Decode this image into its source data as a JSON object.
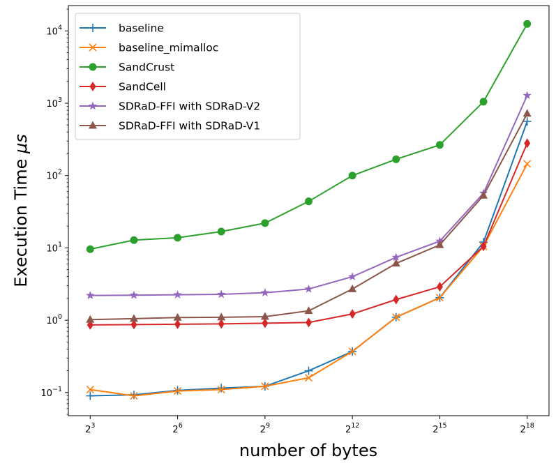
{
  "chart_data": {
    "type": "line",
    "xscale": "log2",
    "yscale": "log10",
    "xlabel": "number of bytes",
    "ylabel": "Execution Time μs",
    "ylabel_plain": "Execution Time ",
    "ylabel_symbol": "μs",
    "x_exponents": [
      3,
      4.5,
      6,
      7.5,
      9,
      10.5,
      12,
      13.5,
      15,
      16.5,
      18
    ],
    "x_ticks": [
      {
        "base": "2",
        "exp": "3",
        "value": 3
      },
      {
        "base": "2",
        "exp": "6",
        "value": 6
      },
      {
        "base": "2",
        "exp": "9",
        "value": 9
      },
      {
        "base": "2",
        "exp": "12",
        "value": 12
      },
      {
        "base": "2",
        "exp": "15",
        "value": 15
      },
      {
        "base": "2",
        "exp": "18",
        "value": 18
      }
    ],
    "y_ticks": [
      {
        "base": "10",
        "exp": "−1",
        "value": -1
      },
      {
        "base": "10",
        "exp": "0",
        "value": 0
      },
      {
        "base": "10",
        "exp": "1",
        "value": 1
      },
      {
        "base": "10",
        "exp": "2",
        "value": 2
      },
      {
        "base": "10",
        "exp": "3",
        "value": 3
      },
      {
        "base": "10",
        "exp": "4",
        "value": 4
      }
    ],
    "xlim": [
      2.25,
      18.75
    ],
    "ylim_log10": [
      -1.32,
      4.35
    ],
    "legend_position": "upper-left",
    "series": [
      {
        "name": "baseline",
        "color": "#1f77b4",
        "marker": "plus",
        "values": [
          0.09,
          0.093,
          0.107,
          0.115,
          0.122,
          0.2,
          0.37,
          1.1,
          2.05,
          12,
          560
        ]
      },
      {
        "name": "baseline_mimalloc",
        "color": "#ff7f0e",
        "marker": "x",
        "values": [
          0.11,
          0.09,
          0.105,
          0.11,
          0.122,
          0.16,
          0.37,
          1.1,
          2.05,
          10.5,
          145
        ]
      },
      {
        "name": "SandCrust",
        "color": "#2ca02c",
        "marker": "circle",
        "values": [
          9.6,
          12.8,
          13.8,
          16.8,
          22,
          44,
          100,
          168,
          265,
          1050,
          12500
        ]
      },
      {
        "name": "SandCell",
        "color": "#d62728",
        "marker": "diamond",
        "values": [
          0.86,
          0.87,
          0.88,
          0.89,
          0.91,
          0.93,
          1.22,
          1.93,
          2.9,
          10.5,
          280
        ]
      },
      {
        "name": "SDRaD-FFI with SDRaD-V2",
        "color": "#9467bd",
        "marker": "star",
        "values": [
          2.2,
          2.22,
          2.25,
          2.28,
          2.4,
          2.7,
          4.0,
          7.4,
          12.4,
          57,
          1280
        ]
      },
      {
        "name": "SDRaD-FFI with SDRaD-V1",
        "color": "#8c564b",
        "marker": "triangle",
        "values": [
          1.02,
          1.05,
          1.09,
          1.1,
          1.12,
          1.35,
          2.7,
          6.1,
          11,
          53,
          720
        ]
      }
    ]
  }
}
